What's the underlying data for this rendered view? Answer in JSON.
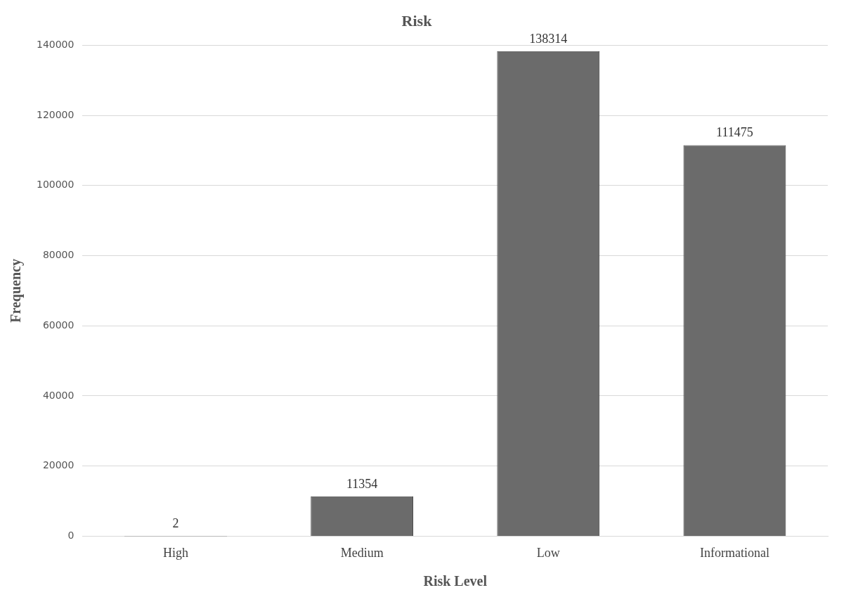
{
  "chart_data": {
    "type": "bar",
    "title": "Risk",
    "xlabel": "Risk Level",
    "ylabel": "Frequency",
    "categories": [
      "High",
      "Medium",
      "Low",
      "Informational"
    ],
    "values": [
      2,
      11354,
      138314,
      111475
    ],
    "color": "#6b6b6b",
    "ylim": [
      0,
      140000
    ],
    "yticks": [
      0,
      20000,
      40000,
      60000,
      80000,
      100000,
      120000,
      140000
    ],
    "grid": "y",
    "data_labels": true
  }
}
